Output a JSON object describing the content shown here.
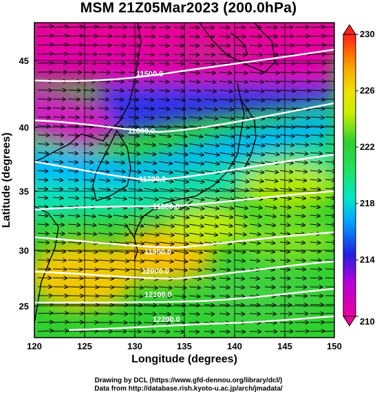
{
  "title": "MSM 21Z05Mar2023 (200.0hPa)",
  "x_axis": {
    "label": "Longitude (degrees)",
    "range": [
      120,
      150
    ],
    "ticks": [
      "120",
      "125",
      "130",
      "135",
      "140",
      "145",
      "150"
    ]
  },
  "y_axis": {
    "label": "Latitude  (degrees)",
    "range": [
      22.4,
      47.6
    ],
    "ticks": [
      "25",
      "30",
      "35",
      "40",
      "45"
    ]
  },
  "colorbar": {
    "range": [
      210,
      230
    ],
    "ticks": [
      "210",
      "214",
      "218",
      "222",
      "226",
      "230"
    ],
    "colors": [
      "#e8009a",
      "#b800d8",
      "#2020e0",
      "#00a8ff",
      "#00e8c8",
      "#20e060",
      "#30d030",
      "#c8f000",
      "#f0e000",
      "#f8b000",
      "#ff6800",
      "#ff2020"
    ]
  },
  "contours": [
    {
      "label": "11500.0"
    },
    {
      "label": "11600.0"
    },
    {
      "label": "11700.0"
    },
    {
      "label": "11800.0"
    },
    {
      "label": "11900.0"
    },
    {
      "label": "12000.0"
    },
    {
      "label": "12100.0"
    },
    {
      "label": "12200.0"
    }
  ],
  "footer": {
    "line1": "Drawing by DCL (https://www.gfd-dennou.org/library/dcl/)",
    "line2": "Data from http://database.rish.kyoto-u.ac.jp/arch/jmadata/"
  }
}
